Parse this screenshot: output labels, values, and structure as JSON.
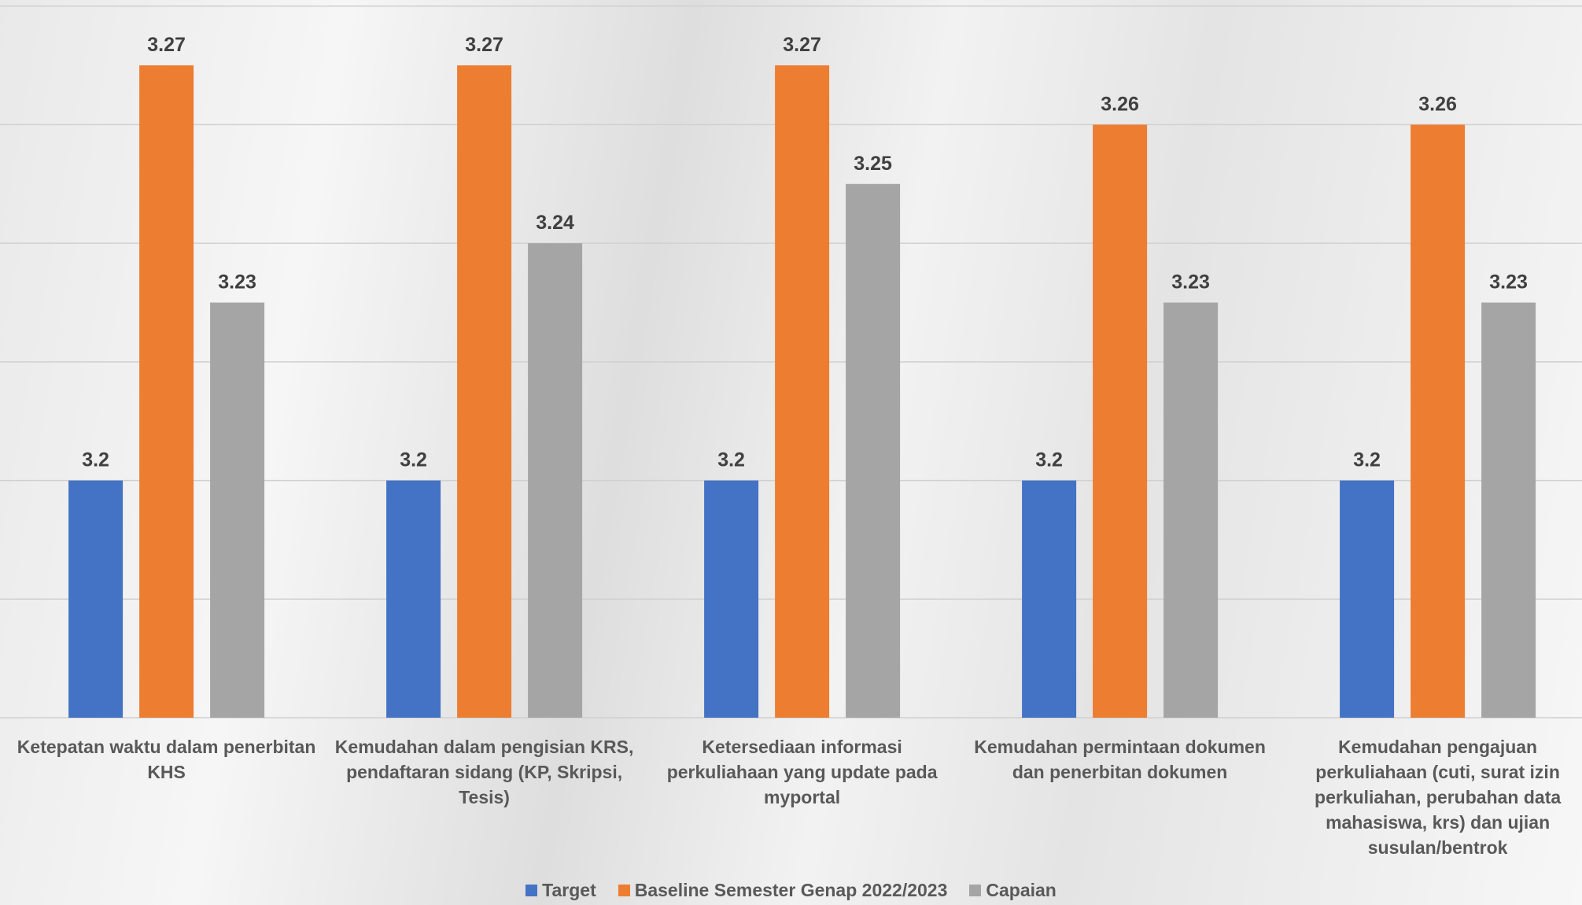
{
  "chart_data": {
    "type": "bar",
    "categories": [
      "Ketepatan waktu dalam penerbitan KHS",
      "Kemudahan dalam pengisian KRS, pendaftaran sidang (KP, Skripsi, Tesis)",
      "Ketersediaan informasi perkuliahaan yang update pada myportal",
      "Kemudahan permintaan dokumen dan penerbitan dokumen",
      "Kemudahan pengajuan perkuliahaan (cuti, surat izin perkuliahan, perubahan data mahasiswa, krs) dan ujian susulan/bentrok"
    ],
    "series": [
      {
        "name": "Target",
        "color": "#4472c4",
        "values": [
          3.2,
          3.2,
          3.2,
          3.2,
          3.2
        ]
      },
      {
        "name": "Baseline Semester Genap 2022/2023",
        "color": "#ed7d31",
        "values": [
          3.27,
          3.27,
          3.27,
          3.26,
          3.26
        ]
      },
      {
        "name": "Capaian",
        "color": "#a5a5a5",
        "values": [
          3.23,
          3.24,
          3.25,
          3.23,
          3.23
        ]
      }
    ],
    "ylim": [
      3.16,
      3.28
    ],
    "yticks": [
      3.16,
      3.18,
      3.2,
      3.22,
      3.24,
      3.26,
      3.28
    ],
    "grid": true,
    "legend": "bottom"
  }
}
